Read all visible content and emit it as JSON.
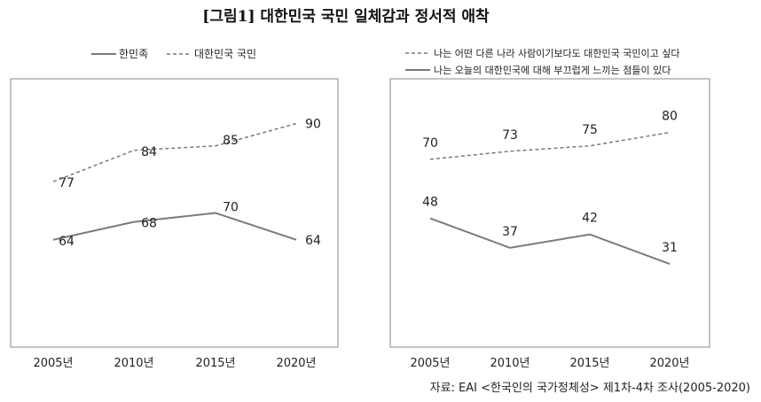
{
  "title": "[그림1] 대한민국 국민 일체감과 정서적 애착",
  "source": "자료: EAI <한국인의 국가정체성> 제1차-4차 조사(2005-2020)",
  "colors": {
    "line": "#7a7a7a",
    "frame": "#8a8a8a",
    "text": "#222222"
  },
  "chart_data": [
    {
      "type": "line",
      "categories": [
        "2005년",
        "2010년",
        "2015년",
        "2020년"
      ],
      "series": [
        {
          "name": "한민족",
          "style": "solid",
          "values": [
            64,
            68,
            70,
            64
          ]
        },
        {
          "name": "대한민국 국민",
          "style": "dashed",
          "values": [
            77,
            84,
            85,
            90
          ]
        }
      ],
      "ylim": [
        40,
        100
      ],
      "legend_position": "top",
      "grid": false
    },
    {
      "type": "line",
      "categories": [
        "2005년",
        "2010년",
        "2015년",
        "2020년"
      ],
      "series": [
        {
          "name": "나는 어떤 다른 나라 사람이기보다도 대한민국 국민이고 싶다",
          "style": "dashed",
          "values": [
            70,
            73,
            75,
            80
          ]
        },
        {
          "name": "나는 오늘의 대한민국에 대해 부끄럽게 느끼는 점들이 있다",
          "style": "solid",
          "values": [
            48,
            37,
            42,
            31
          ]
        }
      ],
      "ylim": [
        0,
        100
      ],
      "legend_position": "top",
      "grid": false
    }
  ]
}
